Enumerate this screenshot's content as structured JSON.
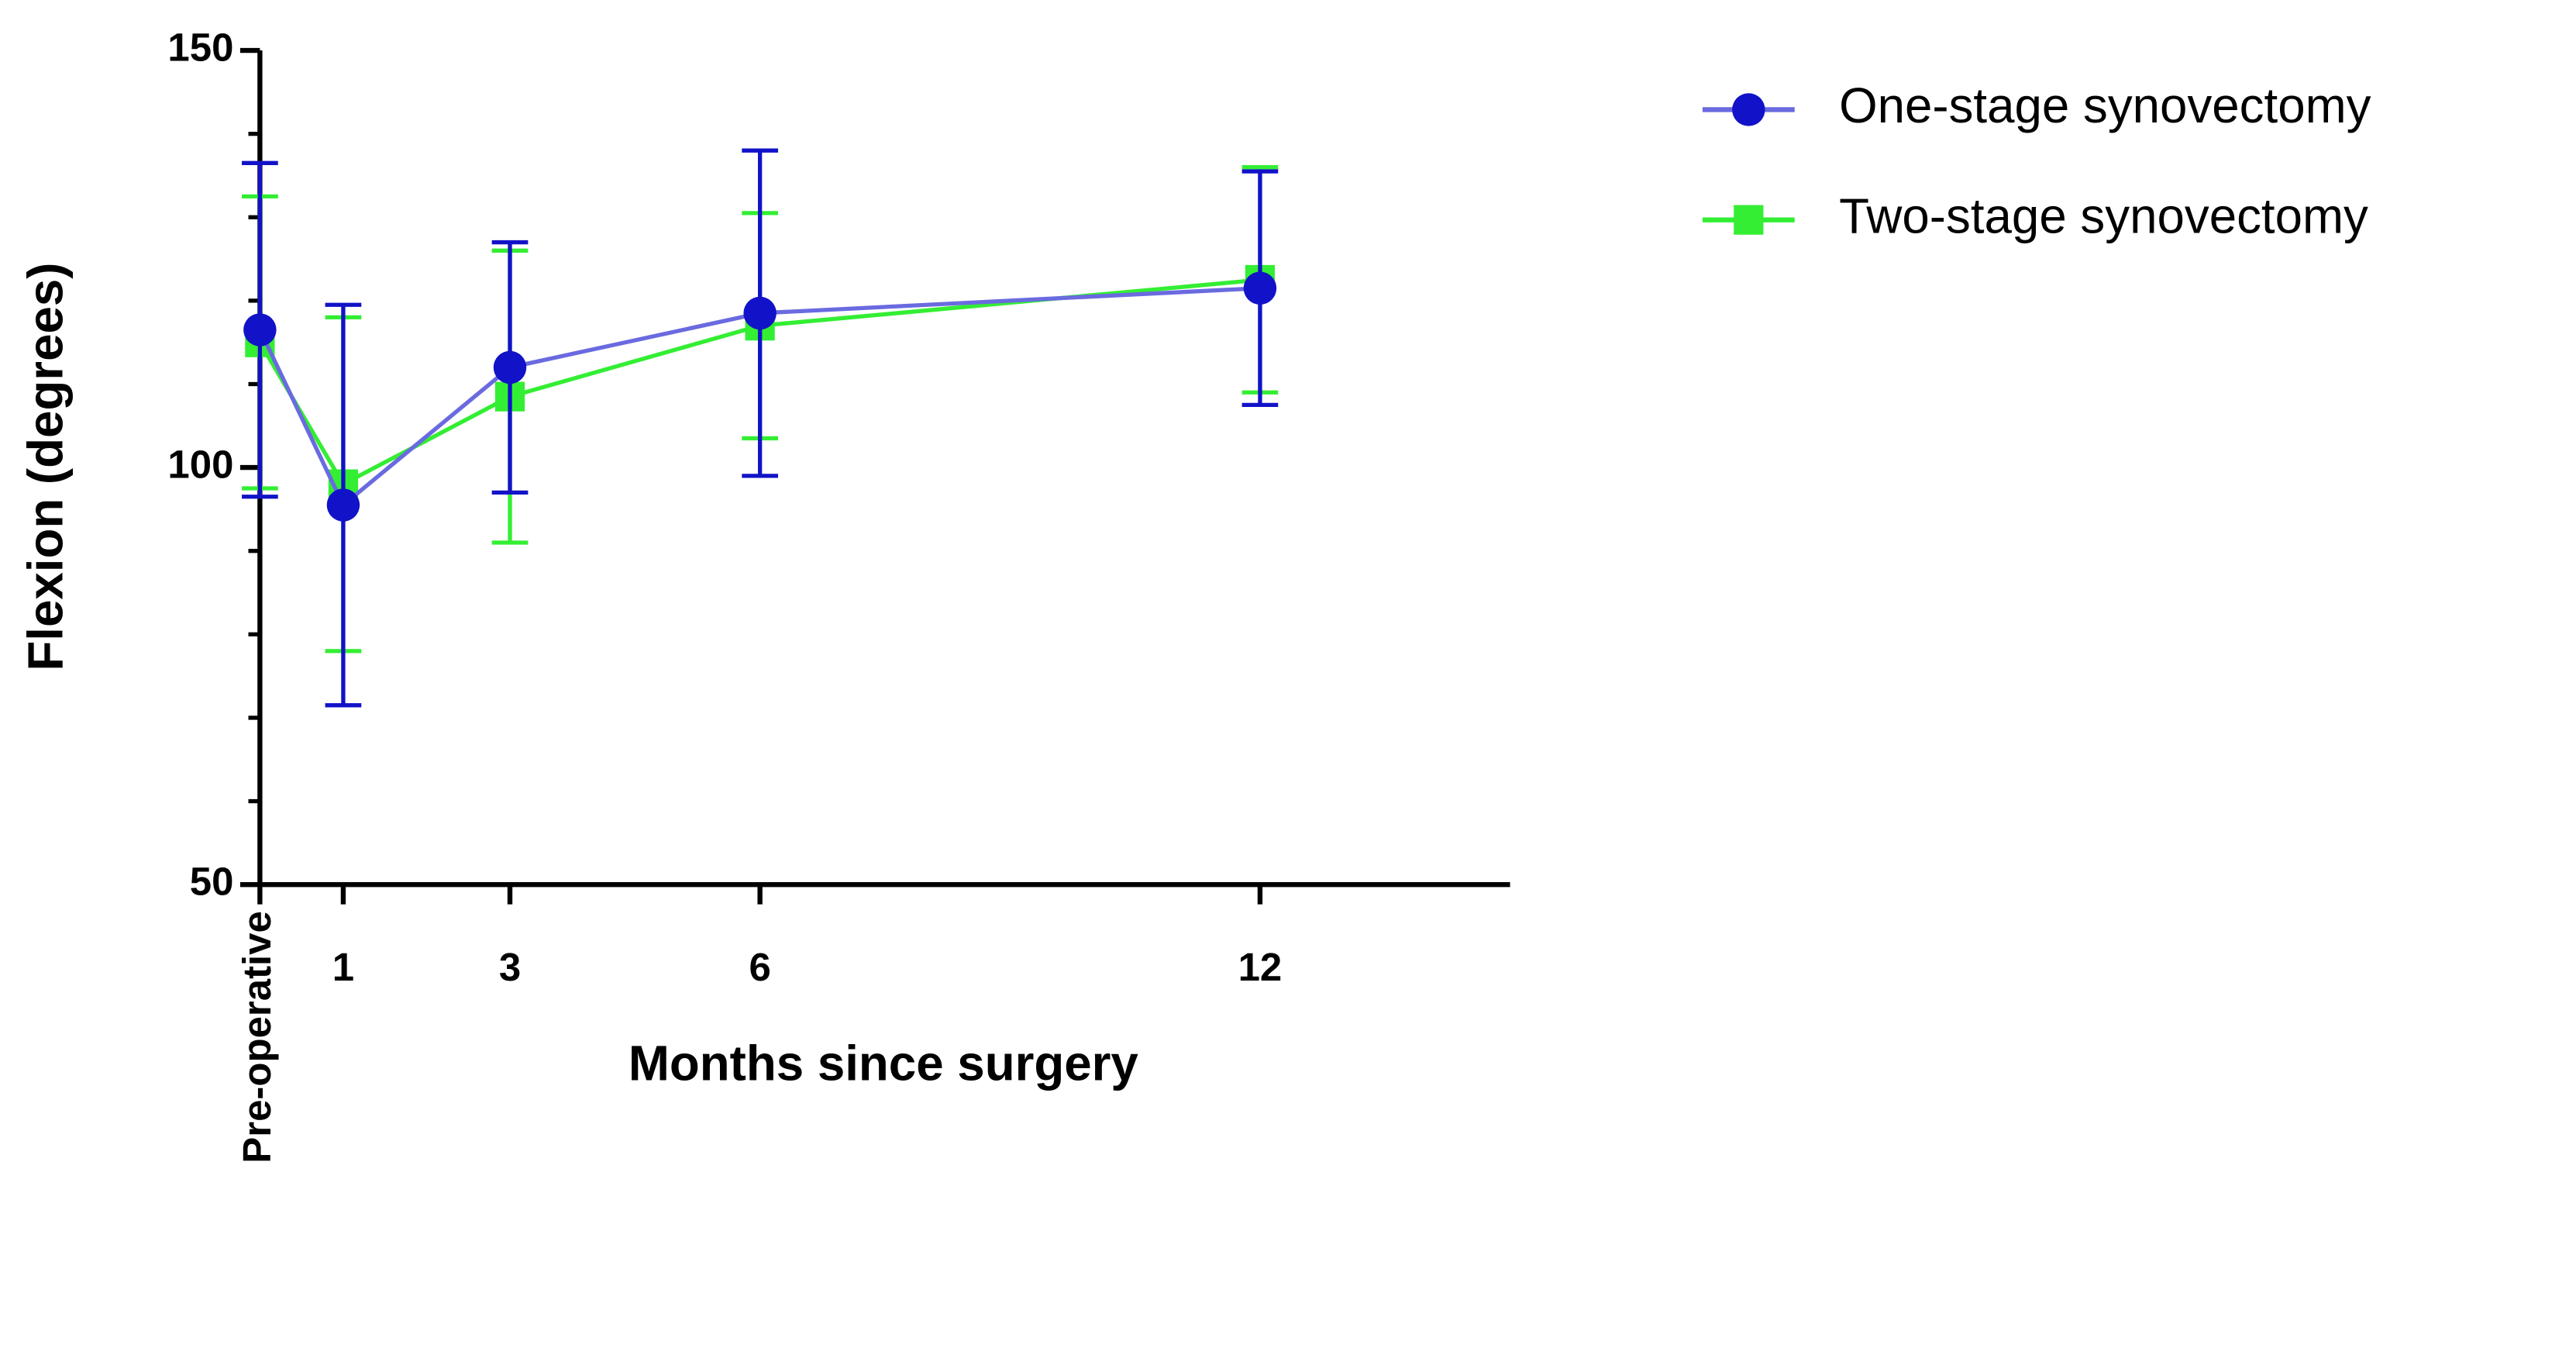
{
  "chart_data": {
    "type": "line",
    "x_label": "Months since surgery",
    "y_label": "Flexion  (degrees)",
    "xlim": [
      0,
      15
    ],
    "xticks": [
      {
        "value": 0,
        "label": "Pre-operative"
      },
      1,
      3,
      6,
      12
    ],
    "ylim": [
      50,
      150
    ],
    "yticks": [
      50,
      100,
      150
    ],
    "yminorticks": [
      60,
      70,
      80,
      90,
      110,
      120,
      130,
      140
    ],
    "x": [
      0,
      1,
      3,
      6,
      12
    ],
    "legend": "upper right",
    "series": [
      {
        "name": "One-stage synovectomy",
        "color": "#1212c8",
        "line_color": "#6a6ae0",
        "marker": "circle",
        "values": [
          116.5,
          95.5,
          112,
          118.5,
          121.5
        ],
        "errors": [
          20,
          24,
          15,
          19.5,
          14
        ]
      },
      {
        "name": "Two-stage synovectomy",
        "color": "#33ee33",
        "line_color": "#33ee33",
        "marker": "square",
        "values": [
          115,
          98,
          108.5,
          117,
          122.5
        ],
        "errors": [
          17.5,
          20,
          17.5,
          13.5,
          13.5
        ]
      }
    ]
  }
}
